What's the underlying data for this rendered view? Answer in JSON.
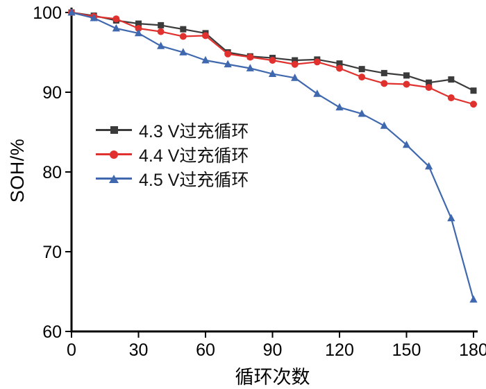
{
  "chart_data": {
    "type": "line",
    "title": "",
    "xlabel": "循环次数",
    "ylabel": "SOH/%",
    "xlim": [
      0,
      180
    ],
    "ylim": [
      60,
      100
    ],
    "xticks": [
      0,
      30,
      60,
      90,
      120,
      150,
      180
    ],
    "yticks": [
      60,
      70,
      80,
      90,
      100
    ],
    "grid": false,
    "legend_position": "upper-left-inside",
    "x": [
      0,
      10,
      20,
      30,
      40,
      50,
      60,
      70,
      80,
      90,
      100,
      110,
      120,
      130,
      140,
      150,
      160,
      170,
      180
    ],
    "series": [
      {
        "name": "4.3 V过充循环",
        "color": "#3b3b3b",
        "marker": "square",
        "values": [
          100,
          99.6,
          99.0,
          98.6,
          98.4,
          97.9,
          97.4,
          95.0,
          94.5,
          94.3,
          94.0,
          94.1,
          93.6,
          92.9,
          92.4,
          92.1,
          91.2,
          91.6,
          90.2
        ]
      },
      {
        "name": "4.4 V过充循环",
        "color": "#e0312e",
        "marker": "circle",
        "values": [
          100,
          99.5,
          99.2,
          98.0,
          97.6,
          97.0,
          97.1,
          94.8,
          94.4,
          94.0,
          93.5,
          93.8,
          93.0,
          91.9,
          91.1,
          91.0,
          90.6,
          89.3,
          88.5
        ]
      },
      {
        "name": "4.5 V过充循环",
        "color": "#3f68ae",
        "marker": "triangle",
        "values": [
          100,
          99.3,
          98.0,
          97.4,
          95.8,
          95.0,
          94.0,
          93.5,
          93.0,
          92.3,
          91.8,
          89.8,
          88.1,
          87.3,
          85.8,
          83.4,
          80.7,
          74.2,
          64.0
        ]
      }
    ]
  }
}
